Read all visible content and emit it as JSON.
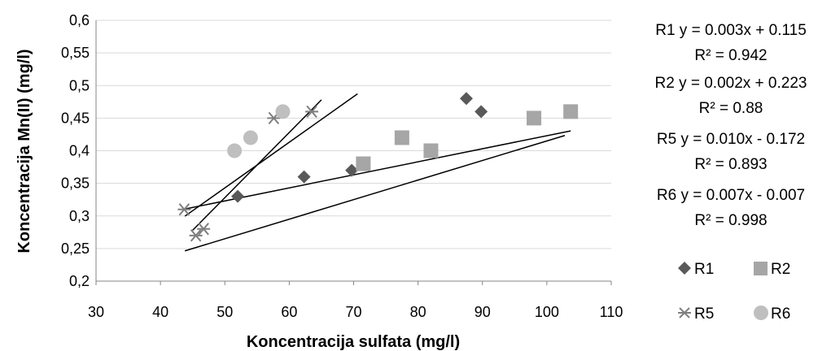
{
  "chart_data": {
    "type": "scatter",
    "title": "",
    "xlabel": "Koncentracija sulfata (mg/l)",
    "ylabel": "Koncentracija Mn(II) (mg/l)",
    "xlim": [
      30,
      110
    ],
    "ylim": [
      0.2,
      0.6
    ],
    "x_ticks": [
      "30",
      "40",
      "50",
      "60",
      "70",
      "80",
      "90",
      "100",
      "110"
    ],
    "y_ticks": [
      "0,2",
      "0,25",
      "0,3",
      "0,35",
      "0,4",
      "0,45",
      "0,5",
      "0,55",
      "0,6"
    ],
    "grid": "horizontal",
    "legend_position": "right",
    "series": [
      {
        "name": "R1",
        "marker": "diamond",
        "color": "#595959",
        "x": [
          52,
          62.3,
          69.7,
          87.5,
          89.8
        ],
        "y": [
          0.33,
          0.36,
          0.37,
          0.48,
          0.46
        ],
        "trendline": {
          "slope": 0.003,
          "intercept": 0.115,
          "x_range": [
            43.8,
            102.8
          ]
        }
      },
      {
        "name": "R2",
        "marker": "square",
        "color": "#a6a6a6",
        "x": [
          71.5,
          77.5,
          82,
          98,
          103.7
        ],
        "y": [
          0.38,
          0.42,
          0.4,
          0.45,
          0.46
        ],
        "trendline": {
          "slope": 0.002,
          "intercept": 0.223,
          "x_range": [
            43.8,
            103.7
          ]
        }
      },
      {
        "name": "R5",
        "marker": "star",
        "color": "#7f7f7f",
        "x": [
          43.7,
          45.5,
          46.7,
          57.6,
          63.5
        ],
        "y": [
          0.31,
          0.27,
          0.28,
          0.45,
          0.46
        ],
        "trendline": {
          "slope": 0.01,
          "intercept": -0.172,
          "x_range": [
            45,
            65
          ]
        }
      },
      {
        "name": "R6",
        "marker": "circle",
        "color": "#bfbfbf",
        "x": [
          51.5,
          54,
          59
        ],
        "y": [
          0.4,
          0.42,
          0.46
        ],
        "trendline": {
          "slope": 0.007,
          "intercept": -0.007,
          "x_range": [
            43.8,
            70.6
          ]
        }
      }
    ],
    "equations": [
      {
        "eq": "R1  y = 0.003x + 0.115",
        "r2": "R² = 0.942"
      },
      {
        "eq": "R2   y = 0.002x + 0.223",
        "r2": "R² = 0.88"
      },
      {
        "eq": "R5   y = 0.010x - 0.172",
        "r2": "R² = 0.893"
      },
      {
        "eq": "R6  y = 0.007x - 0.007",
        "r2": "R² = 0.998"
      }
    ]
  }
}
